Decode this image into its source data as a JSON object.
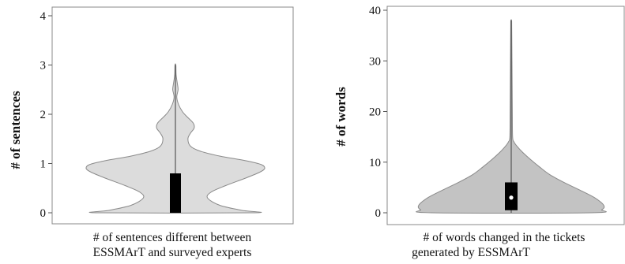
{
  "chart_data": [
    {
      "type": "violin",
      "ylabel": "# of sentences",
      "xlabel_lines": [
        "# of sentences different between",
        "ESSMArT and surveyed experts"
      ],
      "ylim": [
        0,
        4
      ],
      "yticks": [
        "0",
        "1",
        "2",
        "3",
        "4"
      ],
      "violin_color": "#dcdcdc",
      "box_color": "#000000",
      "density_profile": [
        {
          "y": 0.0,
          "w": 0.86
        },
        {
          "y": 0.05,
          "w": 0.74
        },
        {
          "y": 0.15,
          "w": 0.5
        },
        {
          "y": 0.3,
          "w": 0.36
        },
        {
          "y": 0.42,
          "w": 0.4
        },
        {
          "y": 0.55,
          "w": 0.56
        },
        {
          "y": 0.7,
          "w": 0.78
        },
        {
          "y": 0.82,
          "w": 0.94
        },
        {
          "y": 0.9,
          "w": 1.0
        },
        {
          "y": 0.98,
          "w": 0.96
        },
        {
          "y": 1.06,
          "w": 0.78
        },
        {
          "y": 1.15,
          "w": 0.5
        },
        {
          "y": 1.25,
          "w": 0.28
        },
        {
          "y": 1.35,
          "w": 0.17
        },
        {
          "y": 1.5,
          "w": 0.14
        },
        {
          "y": 1.62,
          "w": 0.17
        },
        {
          "y": 1.72,
          "w": 0.21
        },
        {
          "y": 1.82,
          "w": 0.2
        },
        {
          "y": 1.95,
          "w": 0.13
        },
        {
          "y": 2.05,
          "w": 0.08
        },
        {
          "y": 2.2,
          "w": 0.035
        },
        {
          "y": 2.35,
          "w": 0.015
        },
        {
          "y": 2.5,
          "w": 0.03
        },
        {
          "y": 2.62,
          "w": 0.022
        },
        {
          "y": 2.8,
          "w": 0.008
        },
        {
          "y": 3.0,
          "w": 0.005
        }
      ],
      "box": {
        "q1": 0,
        "median": 0,
        "q3": 0.8,
        "whisker_low": 0,
        "whisker_high": 3.0
      }
    },
    {
      "type": "violin",
      "ylabel": "# of words",
      "xlabel_lines": [
        "# of words changed in the tickets",
        "generated by ESSMArT"
      ],
      "ylim": [
        0,
        40
      ],
      "yticks": [
        "0",
        "10",
        "20",
        "30",
        "40"
      ],
      "violin_color": "#c3c3c3",
      "box_color": "#000000",
      "density_profile": [
        {
          "y": 0.0,
          "w": 0.86
        },
        {
          "y": 0.6,
          "w": 0.98
        },
        {
          "y": 1.5,
          "w": 1.0
        },
        {
          "y": 3.0,
          "w": 0.9
        },
        {
          "y": 4.5,
          "w": 0.74
        },
        {
          "y": 6.0,
          "w": 0.57
        },
        {
          "y": 7.5,
          "w": 0.42
        },
        {
          "y": 9.0,
          "w": 0.31
        },
        {
          "y": 10.5,
          "w": 0.21
        },
        {
          "y": 12.0,
          "w": 0.12
        },
        {
          "y": 13.2,
          "w": 0.06
        },
        {
          "y": 14.0,
          "w": 0.03
        },
        {
          "y": 15.0,
          "w": 0.015
        },
        {
          "y": 20.0,
          "w": 0.012
        },
        {
          "y": 25.0,
          "w": 0.01
        },
        {
          "y": 30.0,
          "w": 0.008
        },
        {
          "y": 35.0,
          "w": 0.006
        },
        {
          "y": 37.0,
          "w": 0.005
        },
        {
          "y": 38.0,
          "w": 0.004
        }
      ],
      "box": {
        "q1": 0.5,
        "median": 3,
        "q3": 6,
        "whisker_low": 0,
        "whisker_high": 38
      }
    }
  ]
}
